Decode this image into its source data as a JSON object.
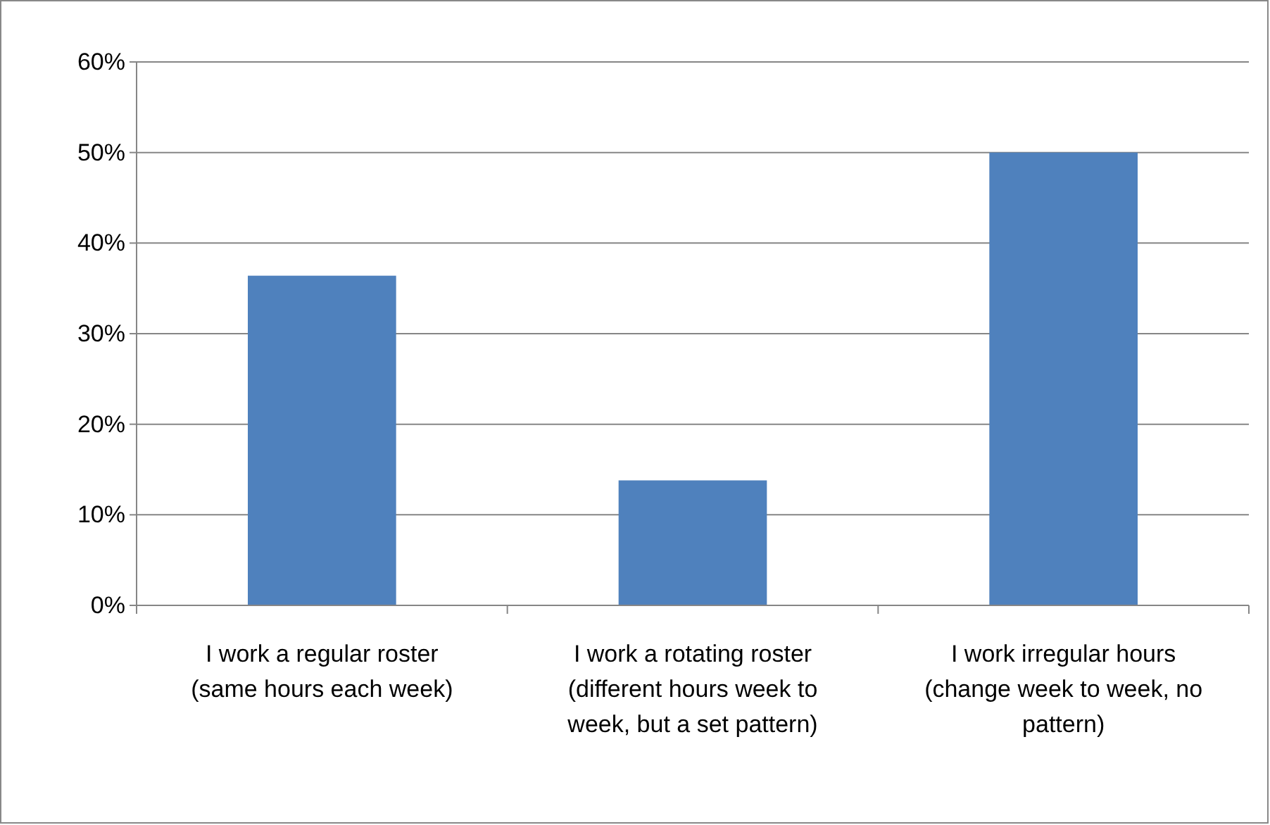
{
  "chart_data": {
    "type": "bar",
    "categories": [
      "I work a regular roster (same hours each week)",
      "I work a rotating roster (different hours week to week, but a set pattern)",
      "I work irregular hours (change week to week, no pattern)"
    ],
    "values": [
      36.4,
      13.8,
      50
    ],
    "color": "#4f81bd",
    "ylim": [
      0,
      60
    ],
    "yticks": [
      {
        "value": 0,
        "label": "0%"
      },
      {
        "value": 10,
        "label": "10%"
      },
      {
        "value": 20,
        "label": "20%"
      },
      {
        "value": 30,
        "label": "30%"
      },
      {
        "value": 40,
        "label": "40%"
      },
      {
        "value": 50,
        "label": "50%"
      },
      {
        "value": 60,
        "label": "60%"
      }
    ],
    "grid": "y"
  }
}
